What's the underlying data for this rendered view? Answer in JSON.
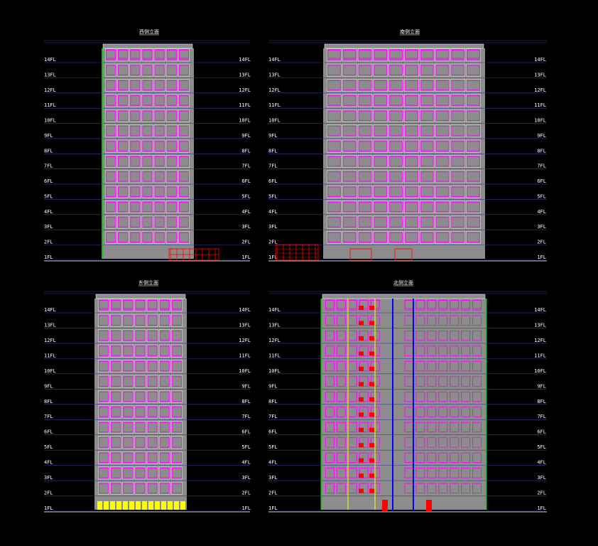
{
  "colors": {
    "background": "#000000",
    "facade": "#8c8c8c",
    "window": "#ff00ff",
    "frame": "#ffffff",
    "level_line": "#3a3aa0",
    "accent_green": "#00c000",
    "accent_red": "#ff0000",
    "accent_yellow": "#ffff00",
    "accent_blue": "#0000ff"
  },
  "floor_labels": [
    "1FL",
    "2FL",
    "3FL",
    "4FL",
    "5FL",
    "6FL",
    "7FL",
    "8FL",
    "9FL",
    "10FL",
    "11FL",
    "12FL",
    "13FL",
    "14FL"
  ],
  "elevations": [
    {
      "id": "west-elevation",
      "title": "西侧立面"
    },
    {
      "id": "south-elevation",
      "title": "南侧立面"
    },
    {
      "id": "east-elevation",
      "title": "东侧立面"
    },
    {
      "id": "north-elevation",
      "title": "北侧立面"
    }
  ]
}
